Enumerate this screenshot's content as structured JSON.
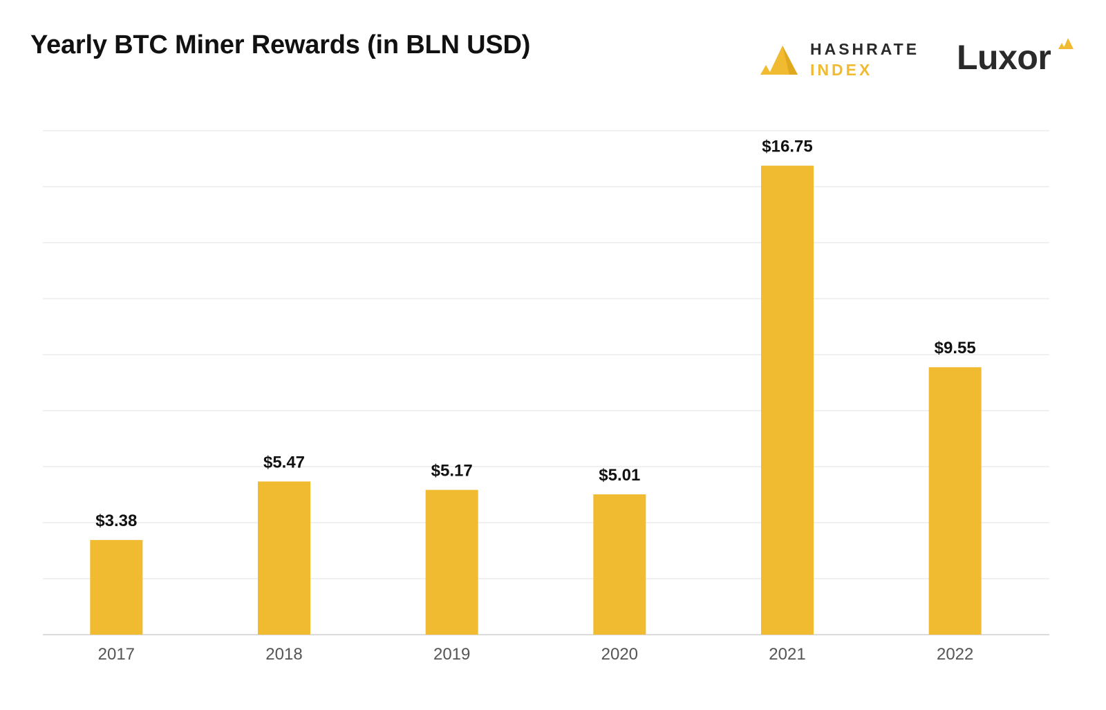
{
  "chart_data": {
    "type": "bar",
    "title": "Yearly BTC Miner Rewards (in BLN USD)",
    "categories": [
      "2017",
      "2018",
      "2019",
      "2020",
      "2021",
      "2022"
    ],
    "values": [
      3.38,
      5.47,
      5.17,
      5.01,
      16.75,
      9.55
    ],
    "data_labels": [
      "$3.38",
      "$5.47",
      "$5.17",
      "$5.01",
      "$16.75",
      "$9.55"
    ],
    "xlabel": "",
    "ylabel": "",
    "ylim": [
      0,
      18
    ],
    "grid": true,
    "legend": "none",
    "bar_color": "#f0bb30"
  },
  "logos": {
    "hashrate": {
      "line1": "HASHRATE",
      "line2": "INDEX",
      "icon": "hashrate-index-logo-icon",
      "color": "#f0bb30"
    },
    "luxor": {
      "text": "Luxor",
      "icon": "luxor-logo-icon"
    }
  }
}
